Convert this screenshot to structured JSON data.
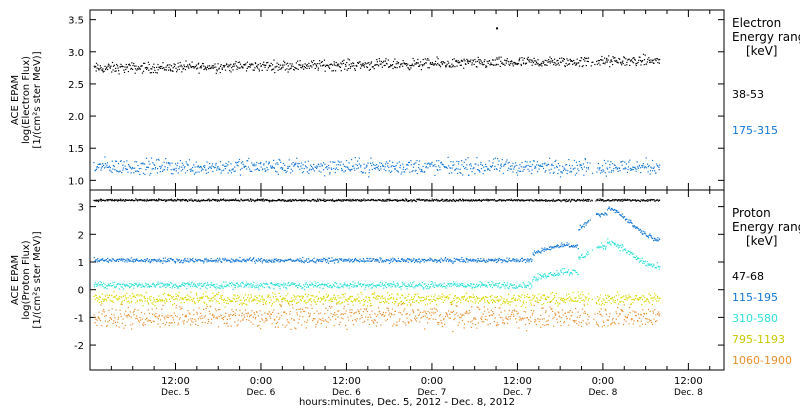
{
  "chart_data": [
    {
      "type": "scatter",
      "panel": "electron",
      "ylabel": [
        "ACE EPAM",
        "log(Electron Flux)",
        "[1/(cm²s ster MeV)]"
      ],
      "yticks": [
        1.0,
        1.5,
        2.0,
        2.5,
        3.0,
        3.5
      ],
      "ytick_labels": [
        "1.0",
        "1.5",
        "2.0",
        "2.5",
        "3.0",
        "3.5"
      ],
      "ylim": [
        0.85,
        3.65
      ],
      "legend_title": [
        "Electron",
        "Energy range",
        "[keV]"
      ],
      "series": [
        {
          "name": "38-53",
          "color": "#000000",
          "x_range": [
            "2012-12-05 00:30",
            "2012-12-08 08:00"
          ],
          "level": 2.75,
          "trend": 0.12,
          "scatter": 0.06
        },
        {
          "name": "175-315",
          "color": "#1577d4",
          "x_range": [
            "2012-12-05 00:30",
            "2012-12-08 08:00"
          ],
          "level": 1.22,
          "trend": 0.0,
          "scatter": 0.09
        }
      ],
      "outliers": [
        {
          "x": "2012-12-07 09:00",
          "y": 3.38
        }
      ]
    },
    {
      "type": "scatter",
      "panel": "proton",
      "ylabel": [
        "ACE EPAM",
        "log(Proton Flux)",
        "[1/(cm²s ster MeV)]"
      ],
      "yticks": [
        -2,
        -1,
        0,
        1,
        2,
        3
      ],
      "ytick_labels": [
        "-2",
        "-1",
        "0",
        "1",
        "2",
        "3"
      ],
      "ylim": [
        -2.9,
        3.6
      ],
      "legend_title": [
        "Proton",
        "Energy range",
        "[keV]"
      ],
      "series": [
        {
          "name": "47-68",
          "color": "#000000",
          "level": 3.25,
          "scatter": 0.03
        },
        {
          "name": "115-195",
          "color": "#1577d4",
          "level": 1.08,
          "scatter": 0.06,
          "enhancement": [
            {
              "x": "2012-12-07 18:00",
              "dy": 0.5
            },
            {
              "x": "2012-12-08 00:30",
              "dy": 1.45
            }
          ]
        },
        {
          "name": "310-580",
          "color": "#2fe0d8",
          "level": 0.18,
          "scatter": 0.09,
          "enhancement": [
            {
              "x": "2012-12-07 18:00",
              "dy": 0.45
            },
            {
              "x": "2012-12-08 00:30",
              "dy": 1.2
            }
          ]
        },
        {
          "name": "795-1193",
          "color": "#d8d800",
          "level": -0.32,
          "scatter": 0.16
        },
        {
          "name": "1060-1900",
          "color": "#e89030",
          "level": -0.95,
          "scatter": 0.3
        }
      ]
    }
  ],
  "xaxis": {
    "tick_labels": [
      {
        "time": "12:00",
        "date": "Dec. 5"
      },
      {
        "time": "0:00",
        "date": "Dec. 6"
      },
      {
        "time": "12:00",
        "date": "Dec. 6"
      },
      {
        "time": "0:00",
        "date": "Dec. 7"
      },
      {
        "time": "12:00",
        "date": "Dec. 7"
      },
      {
        "time": "0:00",
        "date": "Dec. 8"
      },
      {
        "time": "12:00",
        "date": "Dec. 8"
      }
    ],
    "title": "hours:minutes, Dec.  5, 2012 - Dec.  8, 2012",
    "range": [
      "2012-12-05 00:00",
      "2012-12-08 17:00"
    ]
  }
}
